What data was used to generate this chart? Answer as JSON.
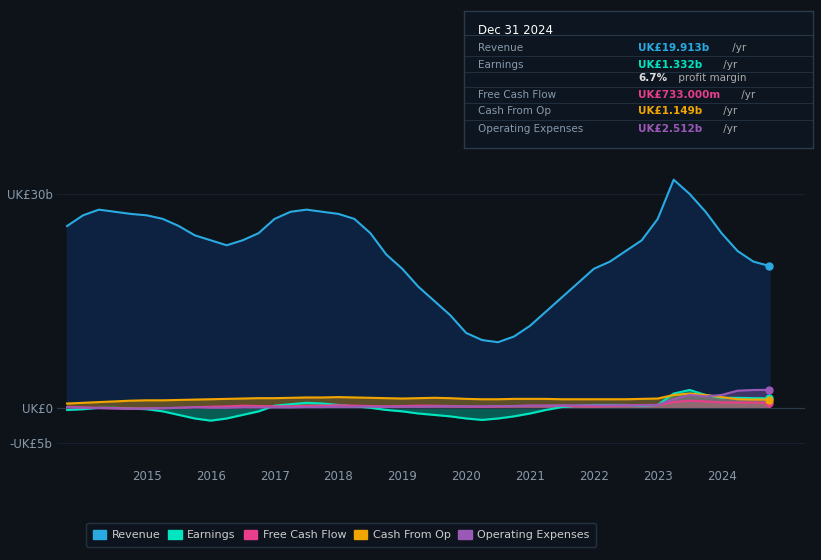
{
  "background_color": "#0e1319",
  "plot_bg_color": "#0e1319",
  "grid_color": "#1a2535",
  "yticks": [
    "UK£30b",
    "UK£0",
    "-UK£5b"
  ],
  "ytick_vals": [
    30,
    0,
    -5
  ],
  "ylim": [
    -8,
    36
  ],
  "xlim": [
    2013.6,
    2025.3
  ],
  "xticks": [
    2015,
    2016,
    2017,
    2018,
    2019,
    2020,
    2021,
    2022,
    2023,
    2024
  ],
  "legend_items": [
    {
      "label": "Revenue",
      "color": "#29abe2"
    },
    {
      "label": "Earnings",
      "color": "#00e5c0"
    },
    {
      "label": "Free Cash Flow",
      "color": "#e83e8c"
    },
    {
      "label": "Cash From Op",
      "color": "#f0a500"
    },
    {
      "label": "Operating Expenses",
      "color": "#9b59b6"
    }
  ],
  "revenue": {
    "x": [
      2013.75,
      2014.0,
      2014.25,
      2014.5,
      2014.75,
      2015.0,
      2015.25,
      2015.5,
      2015.75,
      2016.0,
      2016.25,
      2016.5,
      2016.75,
      2017.0,
      2017.25,
      2017.5,
      2017.75,
      2018.0,
      2018.25,
      2018.5,
      2018.75,
      2019.0,
      2019.25,
      2019.5,
      2019.75,
      2020.0,
      2020.25,
      2020.5,
      2020.75,
      2021.0,
      2021.25,
      2021.5,
      2021.75,
      2022.0,
      2022.25,
      2022.5,
      2022.75,
      2023.0,
      2023.25,
      2023.5,
      2023.75,
      2024.0,
      2024.25,
      2024.5,
      2024.75
    ],
    "y": [
      25.5,
      27.0,
      27.8,
      27.5,
      27.2,
      27.0,
      26.5,
      25.5,
      24.2,
      23.5,
      22.8,
      23.5,
      24.5,
      26.5,
      27.5,
      27.8,
      27.5,
      27.2,
      26.5,
      24.5,
      21.5,
      19.5,
      17.0,
      15.0,
      13.0,
      10.5,
      9.5,
      9.2,
      10.0,
      11.5,
      13.5,
      15.5,
      17.5,
      19.5,
      20.5,
      22.0,
      23.5,
      26.5,
      32.0,
      30.0,
      27.5,
      24.5,
      22.0,
      20.5,
      19.9
    ],
    "color": "#29abe2",
    "fill_color": "#0d2240"
  },
  "earnings": {
    "x": [
      2013.75,
      2014.0,
      2014.25,
      2014.5,
      2014.75,
      2015.0,
      2015.25,
      2015.5,
      2015.75,
      2016.0,
      2016.25,
      2016.5,
      2016.75,
      2017.0,
      2017.25,
      2017.5,
      2017.75,
      2018.0,
      2018.25,
      2018.5,
      2018.75,
      2019.0,
      2019.25,
      2019.5,
      2019.75,
      2020.0,
      2020.25,
      2020.5,
      2020.75,
      2021.0,
      2021.25,
      2021.5,
      2021.75,
      2022.0,
      2022.25,
      2022.5,
      2022.75,
      2023.0,
      2023.25,
      2023.5,
      2023.75,
      2024.0,
      2024.25,
      2024.5,
      2024.75
    ],
    "y": [
      -0.3,
      -0.2,
      0.0,
      0.0,
      -0.1,
      -0.2,
      -0.5,
      -1.0,
      -1.5,
      -1.8,
      -1.5,
      -1.0,
      -0.5,
      0.3,
      0.5,
      0.7,
      0.6,
      0.4,
      0.2,
      0.0,
      -0.3,
      -0.5,
      -0.8,
      -1.0,
      -1.2,
      -1.5,
      -1.7,
      -1.5,
      -1.2,
      -0.8,
      -0.3,
      0.1,
      0.3,
      0.4,
      0.4,
      0.4,
      0.3,
      0.4,
      2.0,
      2.5,
      1.8,
      1.4,
      1.4,
      1.35,
      1.33
    ],
    "color": "#00e5c0"
  },
  "free_cash_flow": {
    "x": [
      2013.75,
      2014.0,
      2014.25,
      2014.5,
      2014.75,
      2015.0,
      2015.25,
      2015.5,
      2015.75,
      2016.0,
      2016.25,
      2016.5,
      2016.75,
      2017.0,
      2017.25,
      2017.5,
      2017.75,
      2018.0,
      2018.25,
      2018.5,
      2018.75,
      2019.0,
      2019.25,
      2019.5,
      2019.75,
      2020.0,
      2020.25,
      2020.5,
      2020.75,
      2021.0,
      2021.25,
      2021.5,
      2021.75,
      2022.0,
      2022.25,
      2022.5,
      2022.75,
      2023.0,
      2023.25,
      2023.5,
      2023.75,
      2024.0,
      2024.25,
      2024.5,
      2024.75
    ],
    "y": [
      0.1,
      0.05,
      0.0,
      -0.05,
      -0.1,
      -0.1,
      -0.05,
      0.0,
      0.1,
      0.15,
      0.2,
      0.3,
      0.25,
      0.2,
      0.2,
      0.25,
      0.3,
      0.35,
      0.3,
      0.25,
      0.2,
      0.25,
      0.3,
      0.3,
      0.25,
      0.2,
      0.15,
      0.2,
      0.25,
      0.3,
      0.3,
      0.3,
      0.25,
      0.2,
      0.25,
      0.35,
      0.4,
      0.4,
      0.8,
      1.0,
      0.9,
      0.75,
      0.75,
      0.73,
      0.73
    ],
    "color": "#e83e8c"
  },
  "cash_from_op": {
    "x": [
      2013.75,
      2014.0,
      2014.25,
      2014.5,
      2014.75,
      2015.0,
      2015.25,
      2015.5,
      2015.75,
      2016.0,
      2016.25,
      2016.5,
      2016.75,
      2017.0,
      2017.25,
      2017.5,
      2017.75,
      2018.0,
      2018.25,
      2018.5,
      2018.75,
      2019.0,
      2019.25,
      2019.5,
      2019.75,
      2020.0,
      2020.25,
      2020.5,
      2020.75,
      2021.0,
      2021.25,
      2021.5,
      2021.75,
      2022.0,
      2022.25,
      2022.5,
      2022.75,
      2023.0,
      2023.25,
      2023.5,
      2023.75,
      2024.0,
      2024.25,
      2024.5,
      2024.75
    ],
    "y": [
      0.6,
      0.7,
      0.8,
      0.9,
      1.0,
      1.05,
      1.05,
      1.1,
      1.15,
      1.2,
      1.25,
      1.3,
      1.35,
      1.35,
      1.4,
      1.45,
      1.45,
      1.5,
      1.45,
      1.4,
      1.35,
      1.3,
      1.35,
      1.4,
      1.35,
      1.25,
      1.2,
      1.2,
      1.25,
      1.25,
      1.25,
      1.2,
      1.2,
      1.2,
      1.2,
      1.2,
      1.25,
      1.3,
      1.8,
      2.0,
      1.8,
      1.5,
      1.2,
      1.15,
      1.15
    ],
    "color": "#f0a500"
  },
  "operating_expenses": {
    "x": [
      2013.75,
      2014.0,
      2014.25,
      2014.5,
      2014.75,
      2015.0,
      2015.25,
      2015.5,
      2015.75,
      2016.0,
      2016.25,
      2016.5,
      2016.75,
      2017.0,
      2017.25,
      2017.5,
      2017.75,
      2018.0,
      2018.25,
      2018.5,
      2018.75,
      2019.0,
      2019.25,
      2019.5,
      2019.75,
      2020.0,
      2020.25,
      2020.5,
      2020.75,
      2021.0,
      2021.25,
      2021.5,
      2021.75,
      2022.0,
      2022.25,
      2022.5,
      2022.75,
      2023.0,
      2023.25,
      2023.5,
      2023.75,
      2024.0,
      2024.25,
      2024.5,
      2024.75
    ],
    "y": [
      0.05,
      0.0,
      -0.05,
      -0.1,
      -0.15,
      -0.1,
      -0.05,
      0.0,
      0.05,
      0.0,
      0.0,
      0.05,
      0.05,
      0.05,
      0.05,
      0.1,
      0.1,
      0.15,
      0.15,
      0.15,
      0.15,
      0.15,
      0.15,
      0.2,
      0.2,
      0.2,
      0.2,
      0.25,
      0.25,
      0.3,
      0.3,
      0.35,
      0.35,
      0.35,
      0.35,
      0.35,
      0.35,
      0.4,
      1.2,
      1.8,
      1.6,
      1.8,
      2.4,
      2.5,
      2.51
    ],
    "color": "#9b59b6"
  },
  "info_box": {
    "bg_color": "#0d1520",
    "border_color": "#2a3a4a",
    "title": "Dec 31 2024",
    "rows": [
      {
        "label": "Revenue",
        "value": "UK£19.913b",
        "value_color": "#29abe2",
        "suffix": " /yr"
      },
      {
        "label": "Earnings",
        "value": "UK£1.332b",
        "value_color": "#00e5c0",
        "suffix": " /yr"
      },
      {
        "label": "",
        "value": "6.7%",
        "value_color": "#dddddd",
        "suffix": " profit margin"
      },
      {
        "label": "Free Cash Flow",
        "value": "UK£733.000m",
        "value_color": "#e83e8c",
        "suffix": " /yr"
      },
      {
        "label": "Cash From Op",
        "value": "UK£1.149b",
        "value_color": "#f0a500",
        "suffix": " /yr"
      },
      {
        "label": "Operating Expenses",
        "value": "UK£2.512b",
        "value_color": "#9b59b6",
        "suffix": " /yr"
      }
    ]
  }
}
